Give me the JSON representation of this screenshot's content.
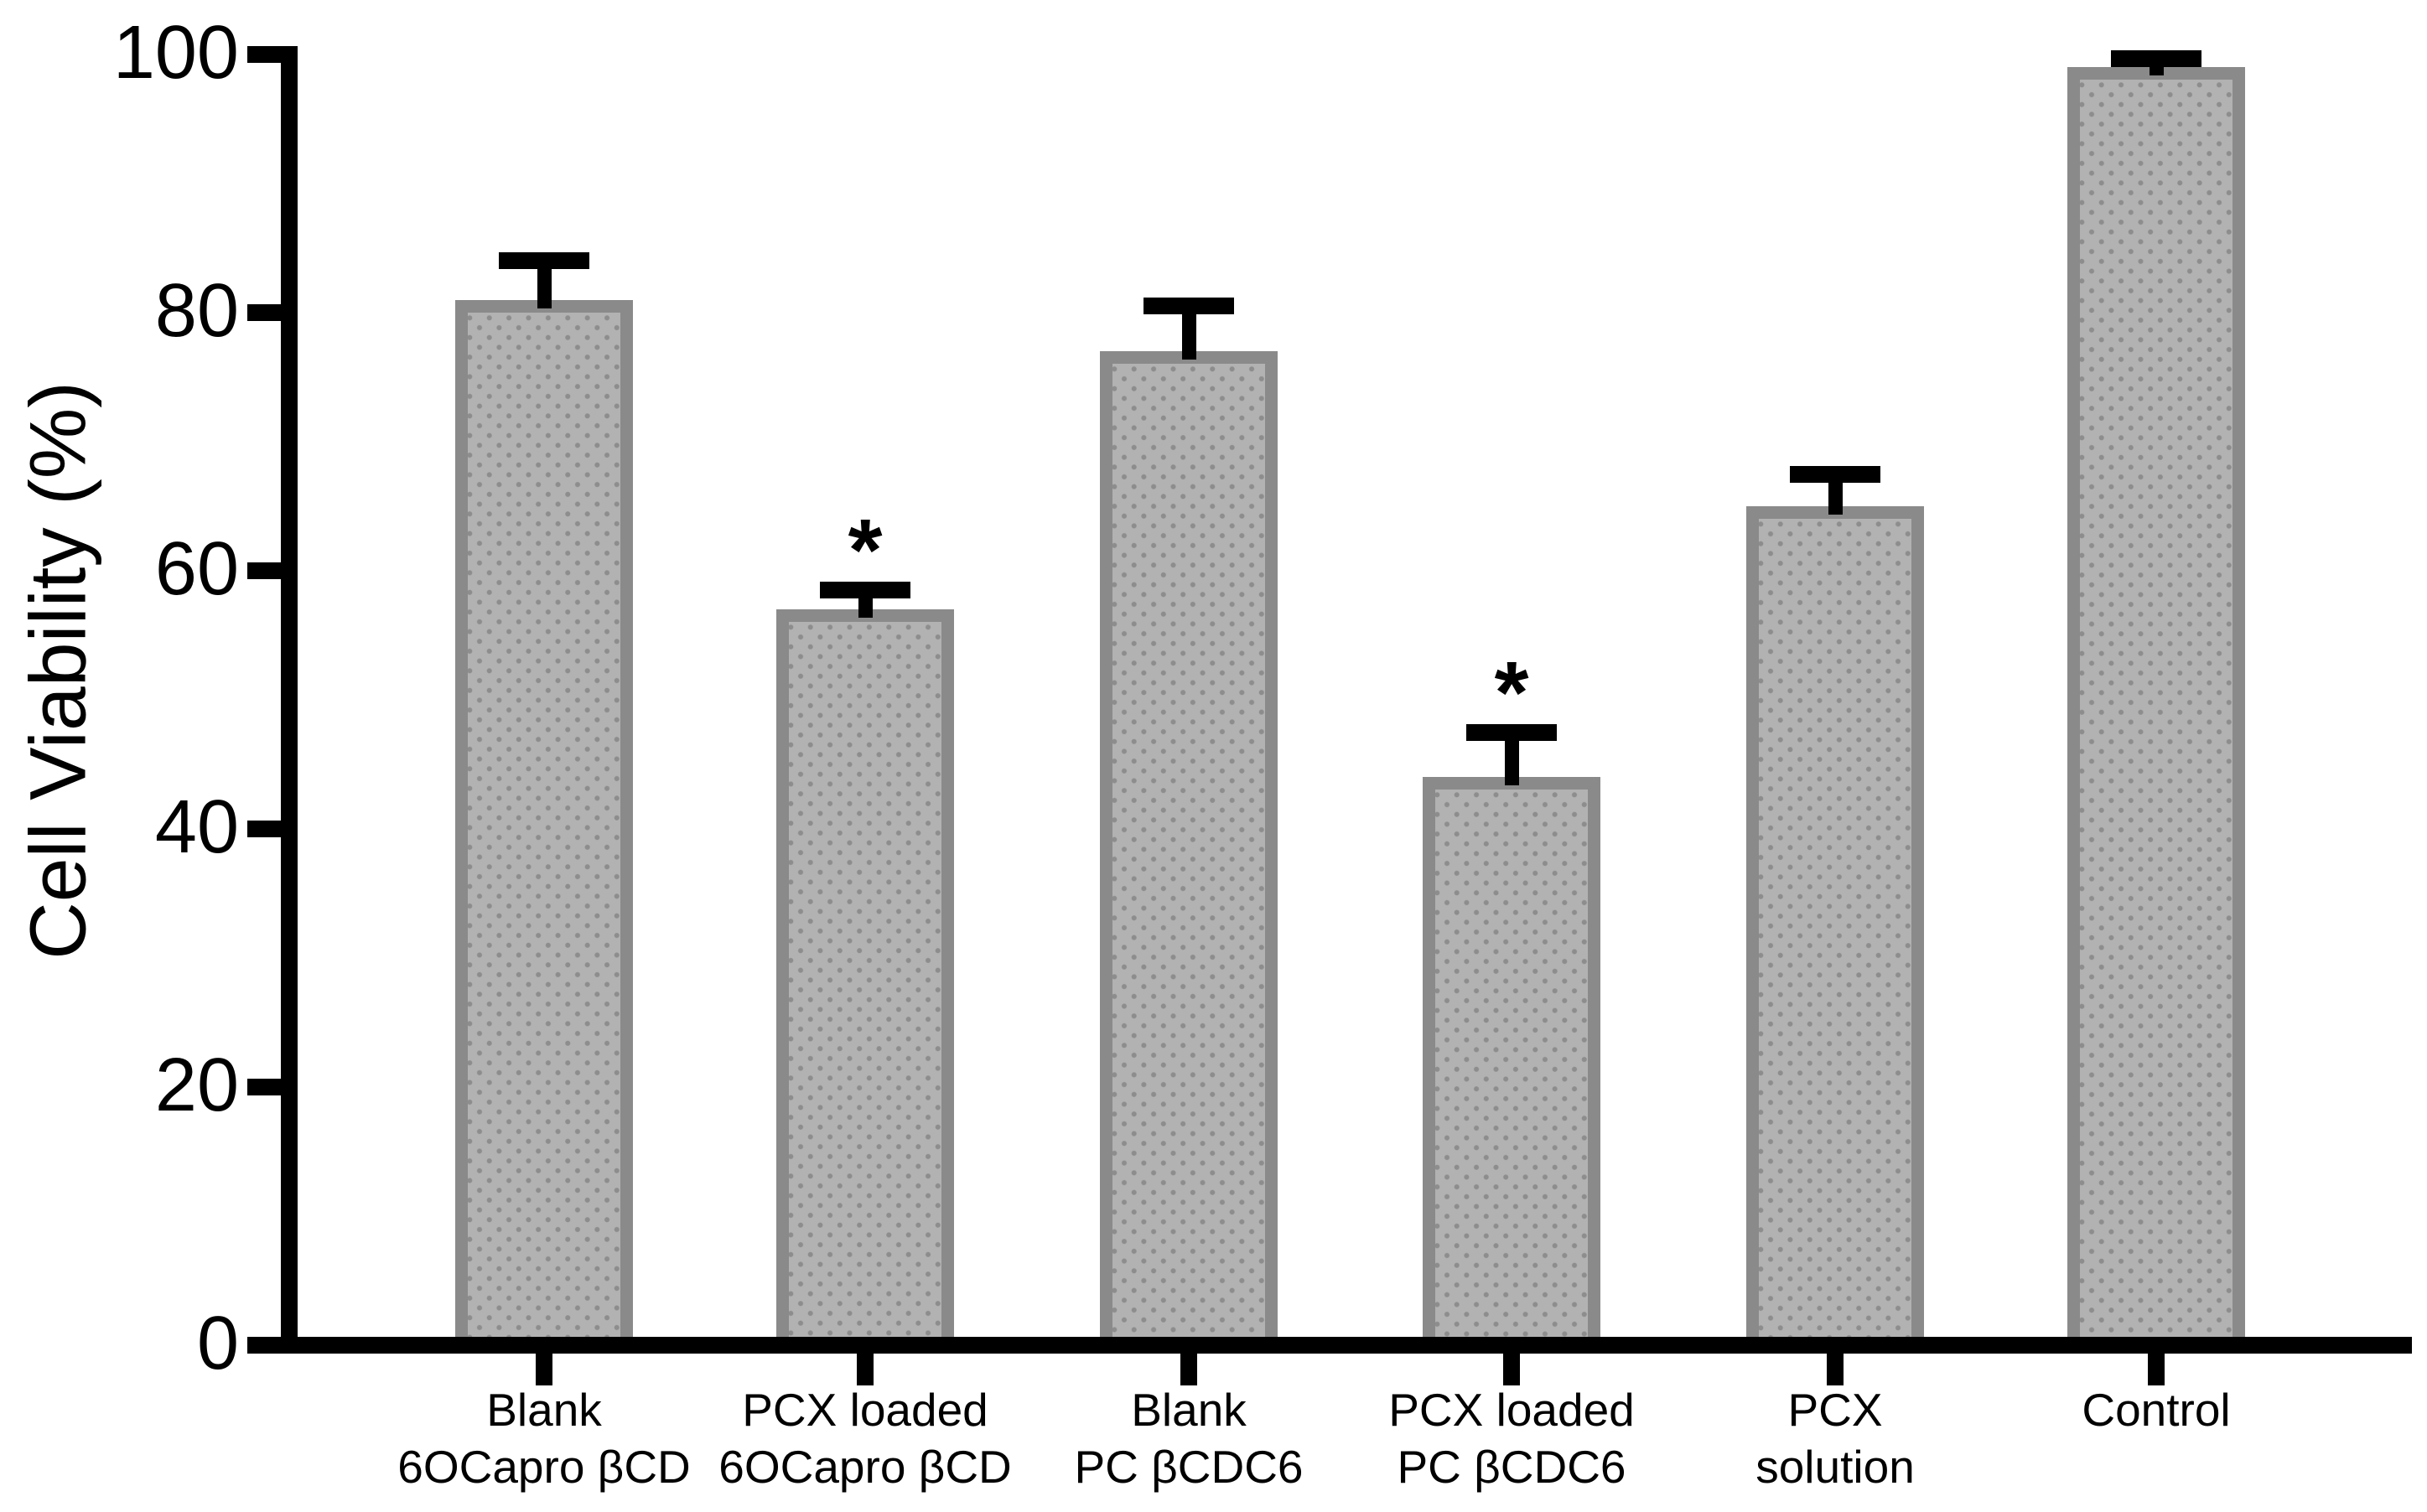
{
  "chart_data": {
    "type": "bar",
    "title": "",
    "xlabel": "",
    "ylabel": "Cell Viability (%)",
    "ylim": [
      0,
      100
    ],
    "yticks": [
      0,
      20,
      40,
      60,
      80,
      100
    ],
    "grid": false,
    "legend": null,
    "categories": [
      "Blank 6OCapro βCD",
      "PCX loaded 6OCapro βCD",
      "Blank PC βCDC6",
      "PCX loaded PC βCDC6",
      "PCX solution",
      "Control"
    ],
    "category_label_lines": [
      [
        "Blank",
        "6OCapro βCD"
      ],
      [
        "PCX loaded",
        "6OCapro βCD"
      ],
      [
        "Blank",
        "PC βCDC6"
      ],
      [
        "PCX loaded",
        "PC βCDC6"
      ],
      [
        "PCX",
        "solution"
      ],
      [
        "Control"
      ]
    ],
    "values": [
      81,
      57,
      77,
      44,
      65,
      99
    ],
    "errors_upper": [
      3,
      1.5,
      3.5,
      3.5,
      2.5,
      0.7
    ],
    "significance": [
      "",
      "*",
      "",
      "*",
      "",
      ""
    ],
    "colors": {
      "bar_fill": "#b2b2b2",
      "bar_border": "#8a8a8a",
      "bar_dots": "#8d8d8d",
      "axis": "#000000",
      "error_bars": "#000000",
      "text": "#000000"
    }
  }
}
